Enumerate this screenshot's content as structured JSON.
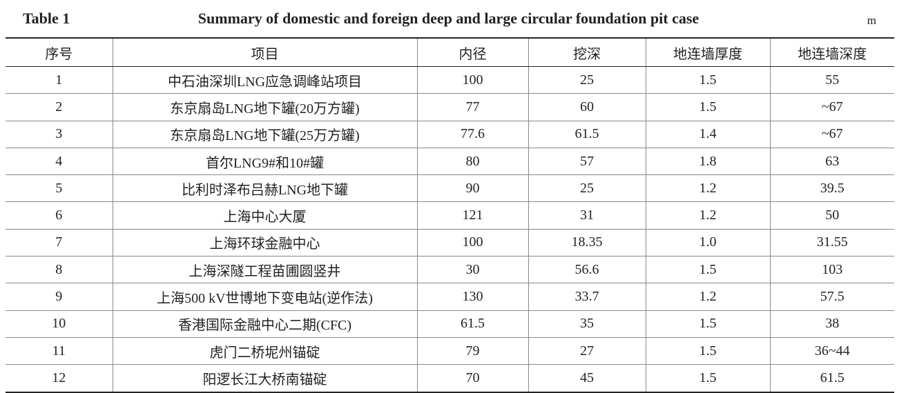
{
  "header": {
    "label": "Table 1",
    "title": "Summary of domestic and foreign deep and large circular foundation pit case",
    "unit": "m"
  },
  "table": {
    "columns": [
      "序号",
      "项目",
      "内径",
      "挖深",
      "地连墙厚度",
      "地连墙深度"
    ],
    "rows": [
      [
        "1",
        "中石油深圳LNG应急调峰站项目",
        "100",
        "25",
        "1.5",
        "55"
      ],
      [
        "2",
        "东京扇岛LNG地下罐(20万方罐)",
        "77",
        "60",
        "1.5",
        "~67"
      ],
      [
        "3",
        "东京扇岛LNG地下罐(25万方罐)",
        "77.6",
        "61.5",
        "1.4",
        "~67"
      ],
      [
        "4",
        "首尔LNG9#和10#罐",
        "80",
        "57",
        "1.8",
        "63"
      ],
      [
        "5",
        "比利时泽布吕赫LNG地下罐",
        "90",
        "25",
        "1.2",
        "39.5"
      ],
      [
        "6",
        "上海中心大厦",
        "121",
        "31",
        "1.2",
        "50"
      ],
      [
        "7",
        "上海环球金融中心",
        "100",
        "18.35",
        "1.0",
        "31.55"
      ],
      [
        "8",
        "上海深隧工程苗圃圆竖井",
        "30",
        "56.6",
        "1.5",
        "103"
      ],
      [
        "9",
        "上海500 kV世博地下变电站(逆作法)",
        "130",
        "33.7",
        "1.2",
        "57.5"
      ],
      [
        "10",
        "香港国际金融中心二期(CFC)",
        "61.5",
        "35",
        "1.5",
        "38"
      ],
      [
        "11",
        "虎门二桥坭州锚碇",
        "79",
        "27",
        "1.5",
        "36~44"
      ],
      [
        "12",
        "阳逻长江大桥南锚碇",
        "70",
        "45",
        "1.5",
        "61.5"
      ]
    ]
  }
}
